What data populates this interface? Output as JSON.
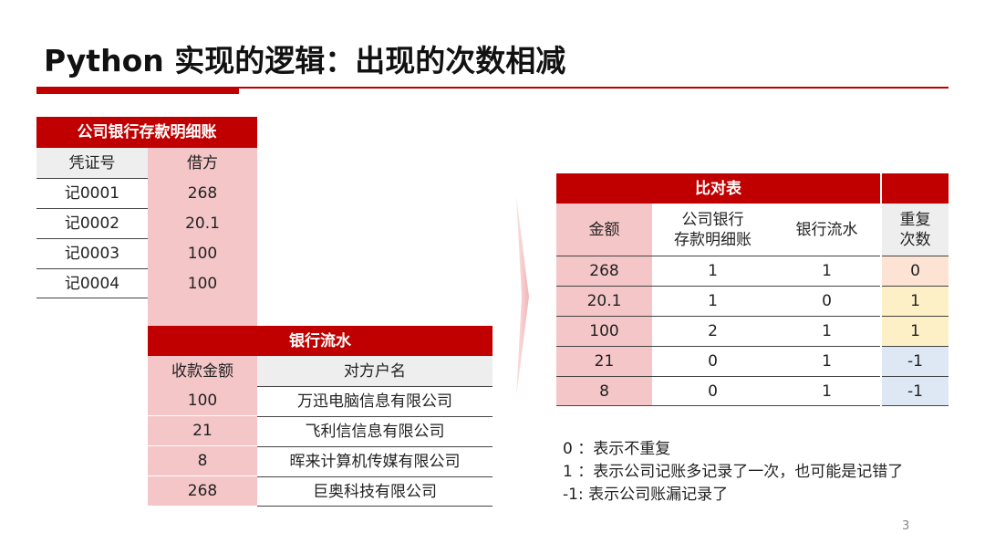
{
  "title": "Python 实现的逻辑：出现的次数相减",
  "ledger": {
    "title": "公司银行存款明细账",
    "columns": [
      "凭证号",
      "借方"
    ],
    "rows": [
      [
        "记0001",
        268
      ],
      [
        "记0002",
        20.1
      ],
      [
        "记0003",
        100
      ],
      [
        "记0004",
        100
      ]
    ]
  },
  "bank": {
    "title": "银行流水",
    "columns": [
      "收款金额",
      "对方户名"
    ],
    "rows": [
      [
        100,
        "万迅电脑信息有限公司"
      ],
      [
        21,
        "飞利信信息有限公司"
      ],
      [
        8,
        "晖来计算机传媒有限公司"
      ],
      [
        268,
        "巨奥科技有限公司"
      ]
    ]
  },
  "compare": {
    "title": "比对表",
    "columns": [
      [
        "金额"
      ],
      [
        "公司银行",
        "存款明细账"
      ],
      [
        "银行流水"
      ],
      [
        "重复",
        "次数"
      ]
    ],
    "rows": [
      [
        268,
        1,
        1,
        0
      ],
      [
        20.1,
        1,
        0,
        1
      ],
      [
        100,
        2,
        1,
        1
      ],
      [
        21,
        0,
        1,
        -1
      ],
      [
        8,
        0,
        1,
        -1
      ]
    ]
  },
  "notes": [
    "0 ：表示不重复",
    "1 ：表示公司记账多记录了一次，也可能是记错了",
    "-1: 表示公司账漏记录了"
  ],
  "page_number": 3
}
